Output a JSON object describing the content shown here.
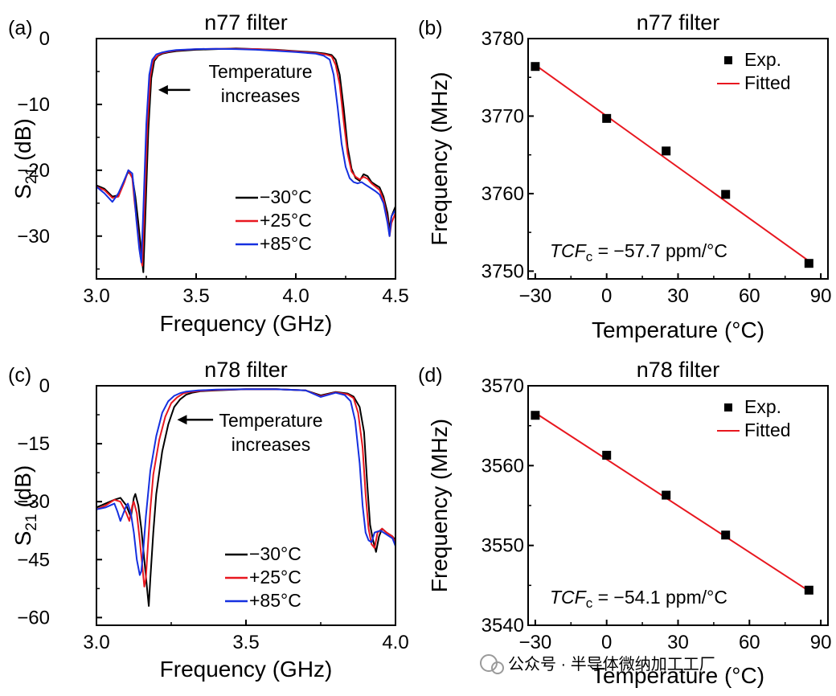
{
  "chart_data": [
    {
      "panel": "(a)",
      "type": "line",
      "title": "n77 filter",
      "xlabel": "Frequency (GHz)",
      "ylabel": "S21 (dB)",
      "ylabel_main": "S",
      "ylabel_sub": "21",
      "ylabel_rest": " (dB)",
      "xlim": [
        3.0,
        4.5
      ],
      "ylim": [
        -36.5,
        0
      ],
      "xticks": [
        "3.0",
        "3.5",
        "4.0",
        "4.5"
      ],
      "xtick_values": [
        3.0,
        3.5,
        4.0,
        4.5
      ],
      "yticks": [
        "0",
        "−10",
        "−20",
        "−30"
      ],
      "ytick_values": [
        0,
        -10,
        -20,
        -30
      ],
      "annotation": [
        "Temperature",
        "increases"
      ],
      "arrow_y": -7.8,
      "arrow_x": [
        3.47,
        3.31
      ],
      "series": [
        {
          "name": "−30°C",
          "color": "#000000",
          "x": [
            3.0,
            3.04,
            3.08,
            3.11,
            3.14,
            3.16,
            3.18,
            3.195,
            3.21,
            3.225,
            3.235,
            3.245,
            3.26,
            3.275,
            3.29,
            3.31,
            3.33,
            3.36,
            3.4,
            3.5,
            3.6,
            3.7,
            3.8,
            3.9,
            4.0,
            4.1,
            4.15,
            4.18,
            4.2,
            4.22,
            4.24,
            4.26,
            4.28,
            4.3,
            4.32,
            4.34,
            4.36,
            4.38,
            4.4,
            4.42,
            4.44,
            4.46,
            4.47,
            4.48,
            4.5
          ],
          "y": [
            -22.3,
            -22.8,
            -24.0,
            -23.8,
            -21.5,
            -20.2,
            -21.0,
            -24.0,
            -28.0,
            -32.5,
            -35.5,
            -27.0,
            -14.0,
            -6.0,
            -3.4,
            -2.6,
            -2.3,
            -2.1,
            -1.9,
            -1.7,
            -1.6,
            -1.5,
            -1.6,
            -1.7,
            -1.9,
            -2.1,
            -2.3,
            -2.5,
            -3.2,
            -5.5,
            -10.5,
            -16.5,
            -19.8,
            -21.2,
            -21.6,
            -20.6,
            -20.9,
            -21.8,
            -22.2,
            -22.6,
            -24.0,
            -26.5,
            -29.0,
            -27.0,
            -25.5
          ]
        },
        {
          "name": "+25°C",
          "color": "#e8171f",
          "x": [
            3.0,
            3.04,
            3.08,
            3.11,
            3.14,
            3.16,
            3.18,
            3.19,
            3.205,
            3.22,
            3.23,
            3.24,
            3.255,
            3.27,
            3.285,
            3.31,
            3.33,
            3.36,
            3.4,
            3.5,
            3.6,
            3.7,
            3.8,
            3.9,
            4.0,
            4.1,
            4.15,
            4.18,
            4.2,
            4.22,
            4.24,
            4.26,
            4.28,
            4.3,
            4.32,
            4.34,
            4.36,
            4.38,
            4.4,
            4.42,
            4.44,
            4.46,
            4.47,
            4.48,
            4.5
          ],
          "y": [
            -22.5,
            -23.0,
            -24.2,
            -24.0,
            -21.8,
            -20.0,
            -21.2,
            -24.5,
            -28.5,
            -33.0,
            -34.5,
            -26.5,
            -13.5,
            -5.8,
            -3.3,
            -2.5,
            -2.2,
            -2.0,
            -1.8,
            -1.6,
            -1.55,
            -1.55,
            -1.6,
            -1.75,
            -1.95,
            -2.2,
            -2.4,
            -2.7,
            -4.0,
            -7.0,
            -12.5,
            -17.5,
            -20.2,
            -21.0,
            -21.4,
            -21.0,
            -21.3,
            -22.0,
            -22.5,
            -23.0,
            -24.5,
            -27.5,
            -30.0,
            -28.0,
            -26.5
          ]
        },
        {
          "name": "+85°C",
          "color": "#1530e0",
          "x": [
            3.0,
            3.04,
            3.08,
            3.11,
            3.14,
            3.16,
            3.18,
            3.19,
            3.2,
            3.215,
            3.225,
            3.235,
            3.25,
            3.265,
            3.28,
            3.3,
            3.33,
            3.36,
            3.4,
            3.5,
            3.6,
            3.7,
            3.8,
            3.9,
            4.0,
            4.1,
            4.14,
            4.17,
            4.19,
            4.21,
            4.23,
            4.25,
            4.27,
            4.29,
            4.31,
            4.33,
            4.35,
            4.37,
            4.4,
            4.42,
            4.44,
            4.46,
            4.47,
            4.48,
            4.5
          ],
          "y": [
            -22.5,
            -23.5,
            -24.8,
            -23.5,
            -21.5,
            -20.0,
            -20.5,
            -23.5,
            -27.5,
            -32.0,
            -34.0,
            -26.0,
            -13.0,
            -5.5,
            -3.2,
            -2.4,
            -2.1,
            -1.9,
            -1.75,
            -1.6,
            -1.55,
            -1.6,
            -1.7,
            -1.85,
            -2.05,
            -2.3,
            -2.6,
            -3.2,
            -5.5,
            -10.5,
            -16.0,
            -19.5,
            -21.2,
            -21.8,
            -22.0,
            -21.8,
            -22.2,
            -22.6,
            -23.2,
            -23.7,
            -25.0,
            -28.0,
            -30.0,
            -27.0,
            -26.0
          ]
        }
      ]
    },
    {
      "panel": "(b)",
      "type": "scatter",
      "title": "n77 filter",
      "xlabel": "Temperature (°C)",
      "ylabel": "Frequency (MHz)",
      "xlim": [
        -33,
        93
      ],
      "ylim": [
        3749,
        3780
      ],
      "xticks": [
        "−30",
        "0",
        "30",
        "60",
        "90"
      ],
      "xtick_values": [
        -30,
        0,
        30,
        60,
        90
      ],
      "yticks": [
        "3750",
        "3760",
        "3770",
        "3780"
      ],
      "ytick_values": [
        3750,
        3760,
        3770,
        3780
      ],
      "legend": [
        "Exp.",
        "Fitted"
      ],
      "legend_position": "top-right",
      "tcf_label": "TCF",
      "tcf_sub": "c",
      "tcf_value": " = −57.7 ppm/°C",
      "series": [
        {
          "name": "Exp.",
          "color": "#000000",
          "x": [
            -30,
            0,
            25,
            50,
            85
          ],
          "y": [
            3776.4,
            3769.7,
            3765.5,
            3759.9,
            3751.0
          ]
        },
        {
          "name": "Fitted",
          "color": "#e8171f",
          "x": [
            -30,
            85
          ],
          "y": [
            3776.6,
            3751.3
          ]
        }
      ]
    },
    {
      "panel": "(c)",
      "type": "line",
      "title": "n78 filter",
      "xlabel": "Frequency (GHz)",
      "ylabel": "S21 (dB)",
      "ylabel_main": "S",
      "ylabel_sub": "21",
      "ylabel_rest": " (dB)",
      "xlim": [
        3.0,
        4.0
      ],
      "ylim": [
        -62,
        0
      ],
      "xticks": [
        "3.0",
        "3.5",
        "4.0"
      ],
      "xtick_values": [
        3.0,
        3.5,
        4.0
      ],
      "yticks": [
        "0",
        "−15",
        "−30",
        "−45",
        "−60"
      ],
      "ytick_values": [
        0,
        -15,
        -30,
        -45,
        -60
      ],
      "annotation": [
        "Temperature",
        "increases"
      ],
      "arrow_y": -8.8,
      "arrow_x": [
        3.39,
        3.27
      ],
      "series": [
        {
          "name": "−30°C",
          "color": "#000000",
          "x": [
            3.0,
            3.03,
            3.06,
            3.08,
            3.1,
            3.115,
            3.125,
            3.13,
            3.14,
            3.15,
            3.16,
            3.17,
            3.175,
            3.18,
            3.19,
            3.2,
            3.22,
            3.24,
            3.26,
            3.28,
            3.3,
            3.32,
            3.35,
            3.4,
            3.5,
            3.6,
            3.7,
            3.75,
            3.8,
            3.84,
            3.86,
            3.88,
            3.895,
            3.905,
            3.915,
            3.925,
            3.935,
            3.945,
            3.955,
            3.97,
            3.99,
            4.0
          ],
          "y": [
            -31.5,
            -30.5,
            -29.5,
            -29.0,
            -31.0,
            -34.0,
            -29.0,
            -28.0,
            -31.0,
            -37.0,
            -45.0,
            -53.0,
            -57.0,
            -50.0,
            -38.0,
            -28.0,
            -17.0,
            -10.0,
            -5.5,
            -3.5,
            -2.3,
            -1.8,
            -1.4,
            -1.2,
            -0.9,
            -0.9,
            -1.2,
            -2.5,
            -1.6,
            -2.0,
            -2.8,
            -5.5,
            -12.0,
            -25.0,
            -36.0,
            -40.0,
            -43.0,
            -39.0,
            -37.0,
            -38.0,
            -39.0,
            -40.0
          ]
        },
        {
          "name": "+25°C",
          "color": "#e8171f",
          "x": [
            3.0,
            3.03,
            3.06,
            3.08,
            3.1,
            3.11,
            3.12,
            3.125,
            3.135,
            3.145,
            3.155,
            3.16,
            3.165,
            3.17,
            3.18,
            3.19,
            3.21,
            3.23,
            3.25,
            3.27,
            3.29,
            3.31,
            3.35,
            3.4,
            3.5,
            3.6,
            3.7,
            3.75,
            3.8,
            3.84,
            3.86,
            3.875,
            3.89,
            3.9,
            3.91,
            3.92,
            3.93,
            3.94,
            3.955,
            3.97,
            3.99,
            4.0
          ],
          "y": [
            -32.0,
            -31.0,
            -29.5,
            -30.0,
            -33.0,
            -35.0,
            -31.0,
            -30.0,
            -33.0,
            -40.0,
            -48.0,
            -52.0,
            -50.0,
            -44.0,
            -32.0,
            -23.0,
            -14.0,
            -8.0,
            -4.5,
            -3.0,
            -2.0,
            -1.6,
            -1.3,
            -1.1,
            -0.9,
            -0.9,
            -1.2,
            -2.7,
            -1.7,
            -2.2,
            -3.2,
            -7.0,
            -16.0,
            -28.0,
            -37.0,
            -41.0,
            -42.0,
            -38.0,
            -37.0,
            -38.0,
            -39.0,
            -41.0
          ]
        },
        {
          "name": "+85°C",
          "color": "#1530e0",
          "x": [
            3.0,
            3.03,
            3.06,
            3.07,
            3.08,
            3.09,
            3.1,
            3.105,
            3.115,
            3.125,
            3.135,
            3.145,
            3.15,
            3.155,
            3.165,
            3.18,
            3.2,
            3.22,
            3.24,
            3.26,
            3.28,
            3.3,
            3.34,
            3.4,
            3.5,
            3.6,
            3.7,
            3.75,
            3.8,
            3.83,
            3.85,
            3.865,
            3.88,
            3.89,
            3.9,
            3.91,
            3.92,
            3.93,
            3.95,
            3.97,
            3.99,
            4.0
          ],
          "y": [
            -32.0,
            -31.5,
            -30.5,
            -32.5,
            -35.0,
            -33.0,
            -31.0,
            -30.5,
            -33.0,
            -38.0,
            -45.0,
            -49.0,
            -48.0,
            -44.0,
            -34.0,
            -22.0,
            -13.0,
            -7.0,
            -4.0,
            -2.6,
            -1.9,
            -1.5,
            -1.2,
            -1.0,
            -0.9,
            -0.9,
            -1.2,
            -2.9,
            -1.8,
            -2.4,
            -4.0,
            -9.0,
            -20.0,
            -31.0,
            -38.0,
            -40.0,
            -40.5,
            -38.0,
            -37.5,
            -38.5,
            -39.5,
            -41.5
          ]
        }
      ]
    },
    {
      "panel": "(d)",
      "type": "scatter",
      "title": "n78 filter",
      "xlabel": "Temperature (°C)",
      "ylabel": "Frequency (MHz)",
      "xlim": [
        -33,
        93
      ],
      "ylim": [
        3540,
        3570
      ],
      "xticks": [
        "−30",
        "0",
        "30",
        "60",
        "90"
      ],
      "xtick_values": [
        -30,
        0,
        30,
        60,
        90
      ],
      "yticks": [
        "3540",
        "3550",
        "3560",
        "3570"
      ],
      "ytick_values": [
        3540,
        3550,
        3560,
        3570
      ],
      "legend": [
        "Exp.",
        "Fitted"
      ],
      "legend_position": "top-right",
      "tcf_label": "TCF",
      "tcf_sub": "c",
      "tcf_value": " = −54.1 ppm/°C",
      "series": [
        {
          "name": "Exp.",
          "color": "#000000",
          "x": [
            -30,
            0,
            25,
            50,
            85
          ],
          "y": [
            3566.3,
            3561.3,
            3556.3,
            3551.3,
            3544.4
          ]
        },
        {
          "name": "Fitted",
          "color": "#e8171f",
          "x": [
            -30,
            85
          ],
          "y": [
            3566.6,
            3544.3
          ]
        }
      ]
    }
  ],
  "watermark": "公众号 · 半导体微纳加工工厂",
  "colors": {
    "black": "#000000",
    "red": "#e8171f",
    "blue": "#1530e0",
    "watermark": "#9a9a9a"
  }
}
